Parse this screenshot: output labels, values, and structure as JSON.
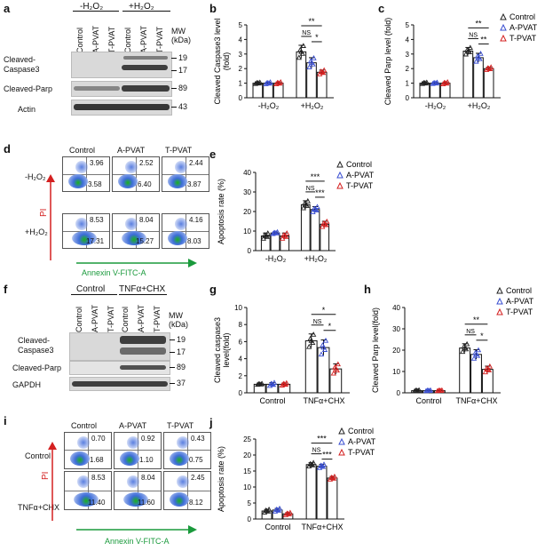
{
  "panels": {
    "a": {
      "letter": "a",
      "header": [
        "-H₂O₂",
        "+H₂O₂"
      ],
      "lanes": [
        "Control",
        "A-PVAT",
        "T-PVAT",
        "Control",
        "A-PVAT",
        "T-PVAT"
      ],
      "mw_title": "MW\n(kDa)",
      "rows": [
        {
          "label": "Cleaved-\nCaspase3",
          "mw": [
            "19",
            "17"
          ]
        },
        {
          "label": "Cleaved-Parp",
          "mw": [
            "89"
          ]
        },
        {
          "label": "Actin",
          "mw": [
            "43"
          ]
        }
      ]
    },
    "d": {
      "letter": "d",
      "cols": [
        "Control",
        "A-PVAT",
        "T-PVAT"
      ],
      "rows": [
        "-H₂O₂",
        "+H₂O₂"
      ],
      "quads": [
        [
          "3.96",
          "3.58"
        ],
        [
          "2.52",
          "6.40"
        ],
        [
          "2.44",
          "3.87"
        ],
        [
          "8.53",
          "17.31"
        ],
        [
          "8.04",
          "15.27"
        ],
        [
          "4.16",
          "8.03"
        ]
      ],
      "yaxis": "PI",
      "xaxis": "Annexin V-FITC-A"
    },
    "f": {
      "letter": "f",
      "header": [
        "Control",
        "TNFα+CHX"
      ],
      "lanes": [
        "Control",
        "A-PVAT",
        "T-PVAT",
        "Control",
        "A-PVAT",
        "T-PVAT"
      ],
      "mw_title": "MW\n(kDa)",
      "rows": [
        {
          "label": "Cleaved-\nCaspase3",
          "mw": [
            "19",
            "17"
          ]
        },
        {
          "label": "Cleaved-Parp",
          "mw": [
            "89"
          ]
        },
        {
          "label": "GAPDH",
          "mw": [
            "37"
          ]
        }
      ]
    },
    "i": {
      "letter": "i",
      "cols": [
        "Control",
        "A-PVAT",
        "T-PVAT"
      ],
      "rows": [
        "Control",
        "TNFα+CHX"
      ],
      "quads": [
        [
          "0.70",
          "1.68"
        ],
        [
          "0.92",
          "1.10"
        ],
        [
          "0.43",
          "0.75"
        ],
        [
          "8.53",
          "11.40"
        ],
        [
          "8.04",
          "11.60"
        ],
        [
          "2.45",
          "8.12"
        ]
      ],
      "yaxis": "PI",
      "xaxis": "Annexin V-FITC-A"
    }
  },
  "legend": [
    "Control",
    "A-PVAT",
    "T-PVAT"
  ],
  "colors": {
    "control": "#222222",
    "apvat": "#3a4fd1",
    "tpvat": "#d42020",
    "green": "#1a9a3c",
    "red": "#d42020"
  },
  "chart_data": [
    {
      "id": "b",
      "letter": "b",
      "type": "bar",
      "title": "",
      "ylabel": "Cleaved Caspase3 level\n(fold)",
      "categories": [
        "-H₂O₂",
        "+H₂O₂"
      ],
      "ylim": [
        0,
        5
      ],
      "yticks": [
        0,
        1,
        2,
        3,
        4,
        5
      ],
      "series": [
        {
          "name": "Control",
          "values": [
            1.0,
            3.15
          ],
          "err": [
            0.05,
            0.45
          ]
        },
        {
          "name": "A-PVAT",
          "values": [
            1.0,
            2.4
          ],
          "err": [
            0.07,
            0.35
          ]
        },
        {
          "name": "T-PVAT",
          "values": [
            1.0,
            1.75
          ],
          "err": [
            0.08,
            0.15
          ]
        }
      ],
      "sig": [
        {
          "label": "**",
          "from": 0,
          "to": 2
        },
        {
          "label": "NS",
          "from": 0,
          "to": 1
        },
        {
          "label": "*",
          "from": 1,
          "to": 2
        }
      ]
    },
    {
      "id": "c",
      "letter": "c",
      "type": "bar",
      "title": "",
      "ylabel": "Cleaved Parp level (fold)",
      "categories": [
        "-H₂O₂",
        "+H₂O₂"
      ],
      "ylim": [
        0,
        5
      ],
      "yticks": [
        0,
        1,
        2,
        3,
        4,
        5
      ],
      "series": [
        {
          "name": "Control",
          "values": [
            1.0,
            3.2
          ],
          "err": [
            0.05,
            0.25
          ]
        },
        {
          "name": "A-PVAT",
          "values": [
            1.0,
            2.75
          ],
          "err": [
            0.05,
            0.3
          ]
        },
        {
          "name": "T-PVAT",
          "values": [
            1.0,
            2.0
          ],
          "err": [
            0.08,
            0.1
          ]
        }
      ],
      "sig": [
        {
          "label": "**",
          "from": 0,
          "to": 2
        },
        {
          "label": "NS",
          "from": 0,
          "to": 1
        },
        {
          "label": "**",
          "from": 1,
          "to": 2
        }
      ]
    },
    {
      "id": "e",
      "letter": "e",
      "type": "bar",
      "title": "",
      "ylabel": "Apoptosis rate (%)",
      "categories": [
        "-H₂O₂",
        "+H₂O₂"
      ],
      "ylim": [
        0,
        40
      ],
      "yticks": [
        0,
        10,
        20,
        30,
        40
      ],
      "series": [
        {
          "name": "Control",
          "values": [
            7.5,
            23.5
          ],
          "err": [
            1.5,
            2.0
          ]
        },
        {
          "name": "A-PVAT",
          "values": [
            9.0,
            21.0
          ],
          "err": [
            0.5,
            1.5
          ]
        },
        {
          "name": "T-PVAT",
          "values": [
            7.5,
            13.5
          ],
          "err": [
            1.5,
            1.5
          ]
        }
      ],
      "sig": [
        {
          "label": "***",
          "from": 0,
          "to": 2
        },
        {
          "label": "NS",
          "from": 0,
          "to": 1
        },
        {
          "label": "***",
          "from": 1,
          "to": 2
        }
      ]
    },
    {
      "id": "g",
      "letter": "g",
      "type": "bar",
      "title": "",
      "ylabel": "Cleaved caspase3\nlevel(fold)",
      "categories": [
        "Control",
        "TNFα+CHX"
      ],
      "ylim": [
        0,
        10
      ],
      "yticks": [
        0,
        2,
        4,
        6,
        8,
        10
      ],
      "series": [
        {
          "name": "Control",
          "values": [
            1.0,
            6.1
          ],
          "err": [
            0.05,
            0.8
          ]
        },
        {
          "name": "A-PVAT",
          "values": [
            1.0,
            5.3
          ],
          "err": [
            0.2,
            0.9
          ]
        },
        {
          "name": "T-PVAT",
          "values": [
            1.0,
            2.8
          ],
          "err": [
            0.15,
            0.6
          ]
        }
      ],
      "sig": [
        {
          "label": "*",
          "from": 0,
          "to": 2
        },
        {
          "label": "NS",
          "from": 0,
          "to": 1
        },
        {
          "label": "*",
          "from": 1,
          "to": 2
        }
      ]
    },
    {
      "id": "h",
      "letter": "h",
      "type": "bar",
      "title": "",
      "ylabel": "Cleaved Parp level(fold)",
      "categories": [
        "Control",
        "TNFα+CHX"
      ],
      "ylim": [
        0,
        40
      ],
      "yticks": [
        0,
        10,
        20,
        30,
        40
      ],
      "series": [
        {
          "name": "Control",
          "values": [
            1.0,
            21.0
          ],
          "err": [
            0.2,
            2.0
          ]
        },
        {
          "name": "A-PVAT",
          "values": [
            1.0,
            18.0
          ],
          "err": [
            0.2,
            2.2
          ]
        },
        {
          "name": "T-PVAT",
          "values": [
            1.0,
            11.0
          ],
          "err": [
            0.2,
            1.5
          ]
        }
      ],
      "sig": [
        {
          "label": "**",
          "from": 0,
          "to": 2
        },
        {
          "label": "NS",
          "from": 0,
          "to": 1
        },
        {
          "label": "*",
          "from": 1,
          "to": 2
        }
      ]
    },
    {
      "id": "j",
      "letter": "j",
      "type": "bar",
      "title": "",
      "ylabel": "Apoptosis rate (%)",
      "categories": [
        "Control",
        "TNFα+CHX"
      ],
      "ylim": [
        0,
        25
      ],
      "yticks": [
        0,
        5,
        10,
        15,
        20,
        25
      ],
      "series": [
        {
          "name": "Control",
          "values": [
            2.5,
            17.0
          ],
          "err": [
            0.5,
            0.6
          ]
        },
        {
          "name": "A-PVAT",
          "values": [
            2.8,
            16.5
          ],
          "err": [
            0.5,
            0.6
          ]
        },
        {
          "name": "T-PVAT",
          "values": [
            1.6,
            12.8
          ],
          "err": [
            0.4,
            0.5
          ]
        }
      ],
      "sig": [
        {
          "label": "***",
          "from": 0,
          "to": 2
        },
        {
          "label": "NS",
          "from": 0,
          "to": 1
        },
        {
          "label": "***",
          "from": 1,
          "to": 2
        }
      ]
    }
  ]
}
